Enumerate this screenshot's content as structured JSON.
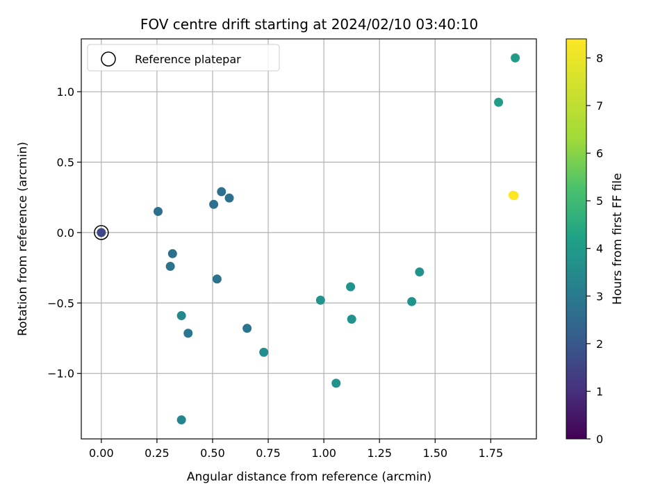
{
  "chart_data": {
    "type": "scatter",
    "title": "FOV centre drift starting at 2024/02/10 03:40:10",
    "xlabel": "Angular distance from reference (arcmin)",
    "ylabel": "Rotation from reference (arcmin)",
    "xlim": [
      -0.09,
      1.955
    ],
    "ylim": [
      -1.465,
      1.375
    ],
    "xticks": [
      0.0,
      0.25,
      0.5,
      0.75,
      1.0,
      1.25,
      1.5,
      1.75
    ],
    "xtick_labels": [
      "0.00",
      "0.25",
      "0.50",
      "0.75",
      "1.00",
      "1.25",
      "1.50",
      "1.75"
    ],
    "yticks": [
      -1.0,
      -0.5,
      0.0,
      0.5,
      1.0
    ],
    "ytick_labels": [
      "−1.0",
      "−0.5",
      "0.0",
      "0.5",
      "1.0"
    ],
    "grid": true,
    "legend": {
      "placement": "upper-left",
      "entries": [
        "Reference platepar"
      ]
    },
    "colorbar": {
      "label": "Hours from first FF file",
      "colormap": "viridis",
      "range": [
        0,
        8.4
      ],
      "ticks": [
        0,
        1,
        2,
        3,
        4,
        5,
        6,
        7,
        8
      ],
      "tick_labels": [
        "0",
        "1",
        "2",
        "3",
        "4",
        "5",
        "6",
        "7",
        "8"
      ]
    },
    "reference_point": {
      "x": 0.0,
      "y": 0.0
    },
    "points": [
      {
        "x": 0.0,
        "y": 0.0,
        "hours": 1.8
      },
      {
        "x": 0.255,
        "y": 0.15,
        "hours": 3.1
      },
      {
        "x": 0.32,
        "y": -0.15,
        "hours": 3.1
      },
      {
        "x": 0.31,
        "y": -0.24,
        "hours": 3.2
      },
      {
        "x": 0.505,
        "y": 0.2,
        "hours": 3.1
      },
      {
        "x": 0.54,
        "y": 0.29,
        "hours": 3.1
      },
      {
        "x": 0.575,
        "y": 0.245,
        "hours": 3.1
      },
      {
        "x": 0.52,
        "y": -0.33,
        "hours": 3.2
      },
      {
        "x": 0.36,
        "y": -0.59,
        "hours": 3.9
      },
      {
        "x": 0.39,
        "y": -0.715,
        "hours": 3.3
      },
      {
        "x": 0.655,
        "y": -0.68,
        "hours": 3.3
      },
      {
        "x": 0.73,
        "y": -0.85,
        "hours": 4.1
      },
      {
        "x": 0.36,
        "y": -1.33,
        "hours": 3.8
      },
      {
        "x": 0.985,
        "y": -0.48,
        "hours": 4.3
      },
      {
        "x": 1.055,
        "y": -1.07,
        "hours": 4.3
      },
      {
        "x": 1.12,
        "y": -0.385,
        "hours": 4.3
      },
      {
        "x": 1.125,
        "y": -0.615,
        "hours": 4.3
      },
      {
        "x": 1.395,
        "y": -0.49,
        "hours": 4.3
      },
      {
        "x": 1.43,
        "y": -0.28,
        "hours": 4.3
      },
      {
        "x": 1.785,
        "y": 0.925,
        "hours": 4.6
      },
      {
        "x": 1.86,
        "y": 1.24,
        "hours": 4.6
      },
      {
        "x": 1.85,
        "y": 0.265,
        "hours": 8.4
      },
      {
        "x": 1.855,
        "y": 0.262,
        "hours": 8.4
      }
    ]
  }
}
